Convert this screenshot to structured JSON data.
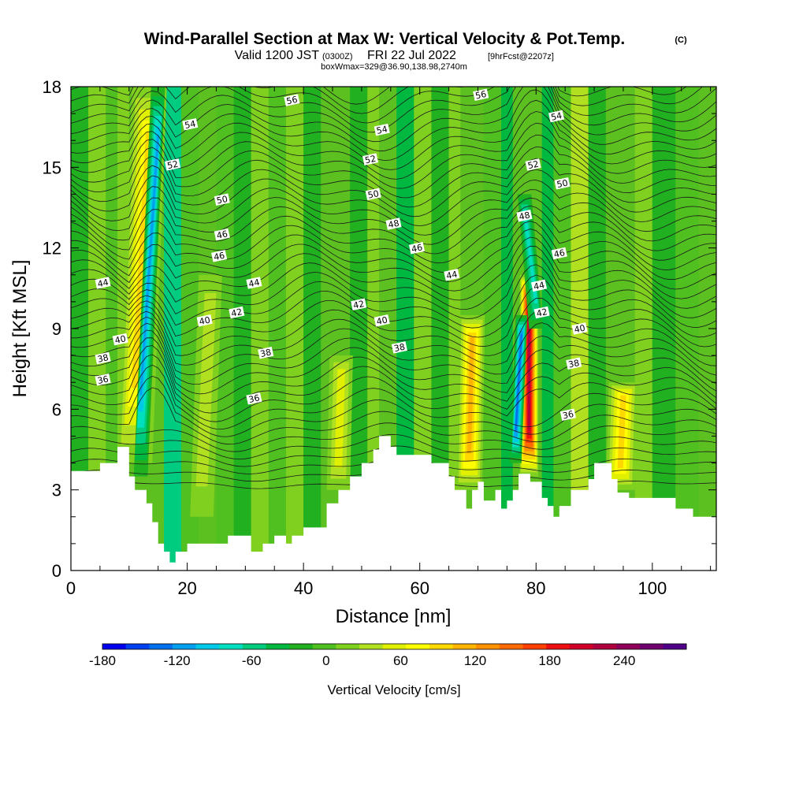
{
  "title": {
    "main": "Wind-Parallel Section at Max W: Vertical Velocity & Pot.Temp.",
    "copyright": "(C)",
    "valid_prefix": "Valid 1200 JST",
    "valid_utc": "(0300Z)",
    "valid_date": "FRI 22 Jul 2022",
    "forecast": "[9hrFcst@2207z]",
    "box_info": "boxWmax=329@36.90,138.98,2740m"
  },
  "chart_data": {
    "type": "heatmap",
    "xlabel": "Distance [nm]",
    "ylabel": "Height [Kft MSL]",
    "xlim": [
      0,
      111
    ],
    "ylim": [
      0,
      18
    ],
    "x_ticks": [
      0,
      20,
      40,
      60,
      80,
      100
    ],
    "y_ticks": [
      0,
      3,
      6,
      9,
      12,
      15,
      18
    ],
    "grid": false,
    "colorbar": {
      "title": "Vertical Velocity [cm/s]",
      "min": -180,
      "max": 270,
      "step": 20,
      "tick_values": [
        -180,
        -120,
        -60,
        0,
        60,
        120,
        180,
        240
      ],
      "colors": [
        "#0000ee",
        "#0040ee",
        "#0070ee",
        "#00a0ee",
        "#00c8e8",
        "#00e0c0",
        "#00cc80",
        "#00b840",
        "#20b020",
        "#50c020",
        "#80d020",
        "#b0e020",
        "#e0f000",
        "#ffff00",
        "#ffd800",
        "#ffb400",
        "#ff9000",
        "#ff6a00",
        "#ff4000",
        "#ee1010",
        "#d00028",
        "#b00040",
        "#900058",
        "#700070",
        "#500088"
      ]
    },
    "terrain_height_kft": [
      [
        0,
        3.7
      ],
      [
        5,
        3.7
      ],
      [
        5,
        4
      ],
      [
        8,
        4
      ],
      [
        8,
        4.6
      ],
      [
        10,
        4.6
      ],
      [
        10,
        3.5
      ],
      [
        11,
        3.5
      ],
      [
        11,
        3
      ],
      [
        13,
        3
      ],
      [
        13,
        2.5
      ],
      [
        14,
        2.5
      ],
      [
        14,
        1.8
      ],
      [
        15,
        1.8
      ],
      [
        15,
        1
      ],
      [
        16,
        1
      ],
      [
        16,
        0.7
      ],
      [
        17,
        0.7
      ],
      [
        17,
        0.3
      ],
      [
        18,
        0.3
      ],
      [
        18,
        0.7
      ],
      [
        20,
        0.7
      ],
      [
        20,
        1
      ],
      [
        27,
        1
      ],
      [
        27,
        1.3
      ],
      [
        31,
        1.3
      ],
      [
        31,
        0.7
      ],
      [
        33,
        0.7
      ],
      [
        33,
        1
      ],
      [
        35,
        1
      ],
      [
        35,
        1.3
      ],
      [
        37,
        1.3
      ],
      [
        37,
        1
      ],
      [
        38,
        1
      ],
      [
        38,
        1.3
      ],
      [
        40,
        1.3
      ],
      [
        40,
        1.6
      ],
      [
        44,
        1.6
      ],
      [
        44,
        2.5
      ],
      [
        46,
        2.5
      ],
      [
        46,
        3
      ],
      [
        48,
        3
      ],
      [
        48,
        3.5
      ],
      [
        50,
        3.5
      ],
      [
        50,
        4
      ],
      [
        52,
        4
      ],
      [
        52,
        4.5
      ],
      [
        53,
        4.5
      ],
      [
        53,
        5
      ],
      [
        55,
        5
      ],
      [
        55,
        4.6
      ],
      [
        56,
        4.6
      ],
      [
        56,
        4.3
      ],
      [
        62,
        4.3
      ],
      [
        62,
        4
      ],
      [
        65,
        4
      ],
      [
        65,
        3.5
      ],
      [
        66,
        3.5
      ],
      [
        66,
        3
      ],
      [
        68,
        3
      ],
      [
        68,
        2.3
      ],
      [
        69,
        2.3
      ],
      [
        69,
        3
      ],
      [
        70,
        3
      ],
      [
        70,
        3.3
      ],
      [
        71,
        3.3
      ],
      [
        71,
        2.6
      ],
      [
        73,
        2.6
      ],
      [
        73,
        3
      ],
      [
        74,
        3
      ],
      [
        74,
        2.3
      ],
      [
        75,
        2.3
      ],
      [
        75,
        2.6
      ],
      [
        76,
        2.6
      ],
      [
        76,
        3
      ],
      [
        77,
        3
      ],
      [
        77,
        3.6
      ],
      [
        79,
        3.6
      ],
      [
        79,
        3.3
      ],
      [
        81,
        3.3
      ],
      [
        81,
        2.7
      ],
      [
        82,
        2.7
      ],
      [
        82,
        2.4
      ],
      [
        83,
        2.4
      ],
      [
        83,
        2
      ],
      [
        84,
        2
      ],
      [
        84,
        2.4
      ],
      [
        86,
        2.4
      ],
      [
        86,
        3
      ],
      [
        89,
        3
      ],
      [
        89,
        3.4
      ],
      [
        90,
        3.4
      ],
      [
        90,
        4
      ],
      [
        93,
        4
      ],
      [
        93,
        3.4
      ],
      [
        94,
        3.4
      ],
      [
        94,
        2.9
      ],
      [
        96,
        2.9
      ],
      [
        96,
        2.7
      ],
      [
        104,
        2.7
      ],
      [
        104,
        2.3
      ],
      [
        107,
        2.3
      ],
      [
        107,
        2
      ],
      [
        111,
        2
      ]
    ],
    "updraft_cores": [
      {
        "x_bottom": 11,
        "x_top": 13.5,
        "z_bottom": 4,
        "z_top": 18,
        "width_nm": 3,
        "w_cm_s": 100
      },
      {
        "x_bottom": 68.5,
        "x_top": 69,
        "z_bottom": 3,
        "z_top": 9.5,
        "width_nm": 2.2,
        "w_cm_s": 130
      },
      {
        "x_bottom": 78.8,
        "x_top": 78.8,
        "z_bottom": 3.5,
        "z_top": 11,
        "width_nm": 1.6,
        "w_cm_s": 240
      },
      {
        "x_bottom": 94.5,
        "x_top": 95,
        "z_bottom": 3,
        "z_top": 7,
        "width_nm": 2.5,
        "w_cm_s": 100
      },
      {
        "x_bottom": 46,
        "x_top": 46.5,
        "z_bottom": 3,
        "z_top": 8,
        "width_nm": 2,
        "w_cm_s": 60
      },
      {
        "x_bottom": 22.5,
        "x_top": 24,
        "z_bottom": 2,
        "z_top": 11,
        "width_nm": 2,
        "w_cm_s": 55
      }
    ],
    "downdraft_cores": [
      {
        "x_bottom": 12,
        "x_top": 15,
        "z_bottom": 3.5,
        "z_top": 18,
        "width_nm": 1.2,
        "w_cm_s": -130
      },
      {
        "x_bottom": 76.5,
        "x_top": 77.5,
        "z_bottom": 4,
        "z_top": 9.5,
        "width_nm": 1,
        "w_cm_s": -150
      },
      {
        "x_bottom": 80,
        "x_top": 78,
        "z_bottom": 9,
        "z_top": 14,
        "width_nm": 1.2,
        "w_cm_s": -90
      }
    ],
    "theta_contours": [
      {
        "label": "36",
        "x_label": 5.5,
        "z_label": 7.1
      },
      {
        "label": "36",
        "x_label": 31.5,
        "z_label": 6.4
      },
      {
        "label": "36",
        "x_label": 85.5,
        "z_label": 5.8
      },
      {
        "label": "38",
        "x_label": 5.5,
        "z_label": 7.9
      },
      {
        "label": "38",
        "x_label": 33.5,
        "z_label": 8.1
      },
      {
        "label": "38",
        "x_label": 56.5,
        "z_label": 8.3
      },
      {
        "label": "38",
        "x_label": 86.5,
        "z_label": 7.7
      },
      {
        "label": "40",
        "x_label": 8.5,
        "z_label": 8.6
      },
      {
        "label": "40",
        "x_label": 23,
        "z_label": 9.3
      },
      {
        "label": "40",
        "x_label": 53.5,
        "z_label": 9.3
      },
      {
        "label": "40",
        "x_label": 87.5,
        "z_label": 9.0
      },
      {
        "label": "42",
        "x_label": 28.5,
        "z_label": 9.6
      },
      {
        "label": "42",
        "x_label": 49.5,
        "z_label": 9.9
      },
      {
        "label": "42",
        "x_label": 81,
        "z_label": 9.6
      },
      {
        "label": "44",
        "x_label": 5.5,
        "z_label": 10.7
      },
      {
        "label": "44",
        "x_label": 31.5,
        "z_label": 10.7
      },
      {
        "label": "44",
        "x_label": 65.5,
        "z_label": 11.0
      },
      {
        "label": "44",
        "x_label": 80.5,
        "z_label": 10.6
      },
      {
        "label": "46",
        "x_label": 25.5,
        "z_label": 11.7
      },
      {
        "label": "46",
        "x_label": 59.5,
        "z_label": 12.0
      },
      {
        "label": "46",
        "x_label": 84,
        "z_label": 11.8
      },
      {
        "label": "46",
        "x_label": 26,
        "z_label": 12.5
      },
      {
        "label": "48",
        "x_label": 55.5,
        "z_label": 12.9
      },
      {
        "label": "48",
        "x_label": 78,
        "z_label": 13.2
      },
      {
        "label": "50",
        "x_label": 26,
        "z_label": 13.8
      },
      {
        "label": "50",
        "x_label": 52,
        "z_label": 14.0
      },
      {
        "label": "50",
        "x_label": 84.5,
        "z_label": 14.4
      },
      {
        "label": "52",
        "x_label": 17.5,
        "z_label": 15.1
      },
      {
        "label": "52",
        "x_label": 51.5,
        "z_label": 15.3
      },
      {
        "label": "52",
        "x_label": 79.5,
        "z_label": 15.1
      },
      {
        "label": "54",
        "x_label": 20.5,
        "z_label": 16.6
      },
      {
        "label": "54",
        "x_label": 53.5,
        "z_label": 16.4
      },
      {
        "label": "54",
        "x_label": 83.5,
        "z_label": 16.9
      },
      {
        "label": "56",
        "x_label": 38,
        "z_label": 17.5
      },
      {
        "label": "56",
        "x_label": 70.5,
        "z_label": 17.7
      }
    ]
  }
}
